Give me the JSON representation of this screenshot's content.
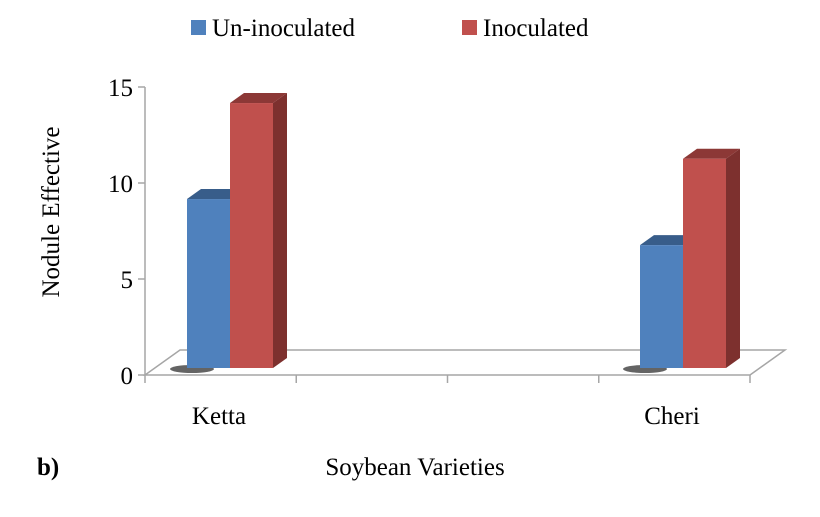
{
  "chart_data": {
    "type": "bar",
    "style": "3d-clustered",
    "panel_label": "b)",
    "xlabel": "Soybean Varieties",
    "ylabel": "Nodule Effective",
    "categories": [
      "Ketta",
      "Cheri"
    ],
    "series": [
      {
        "name": "Un-inoculated",
        "values": [
          8.8,
          6.4
        ],
        "color": "#4f81bd",
        "top_color": "#385d8a",
        "side_color": "#2c4d75"
      },
      {
        "name": "Inoculated",
        "values": [
          13.8,
          10.9
        ],
        "color": "#c0504d",
        "top_color": "#8c3836",
        "side_color": "#7d302e"
      }
    ],
    "ylim": [
      0,
      15
    ],
    "yticks": [
      0,
      5,
      10,
      15
    ],
    "grid": false,
    "legend_position": "top"
  }
}
